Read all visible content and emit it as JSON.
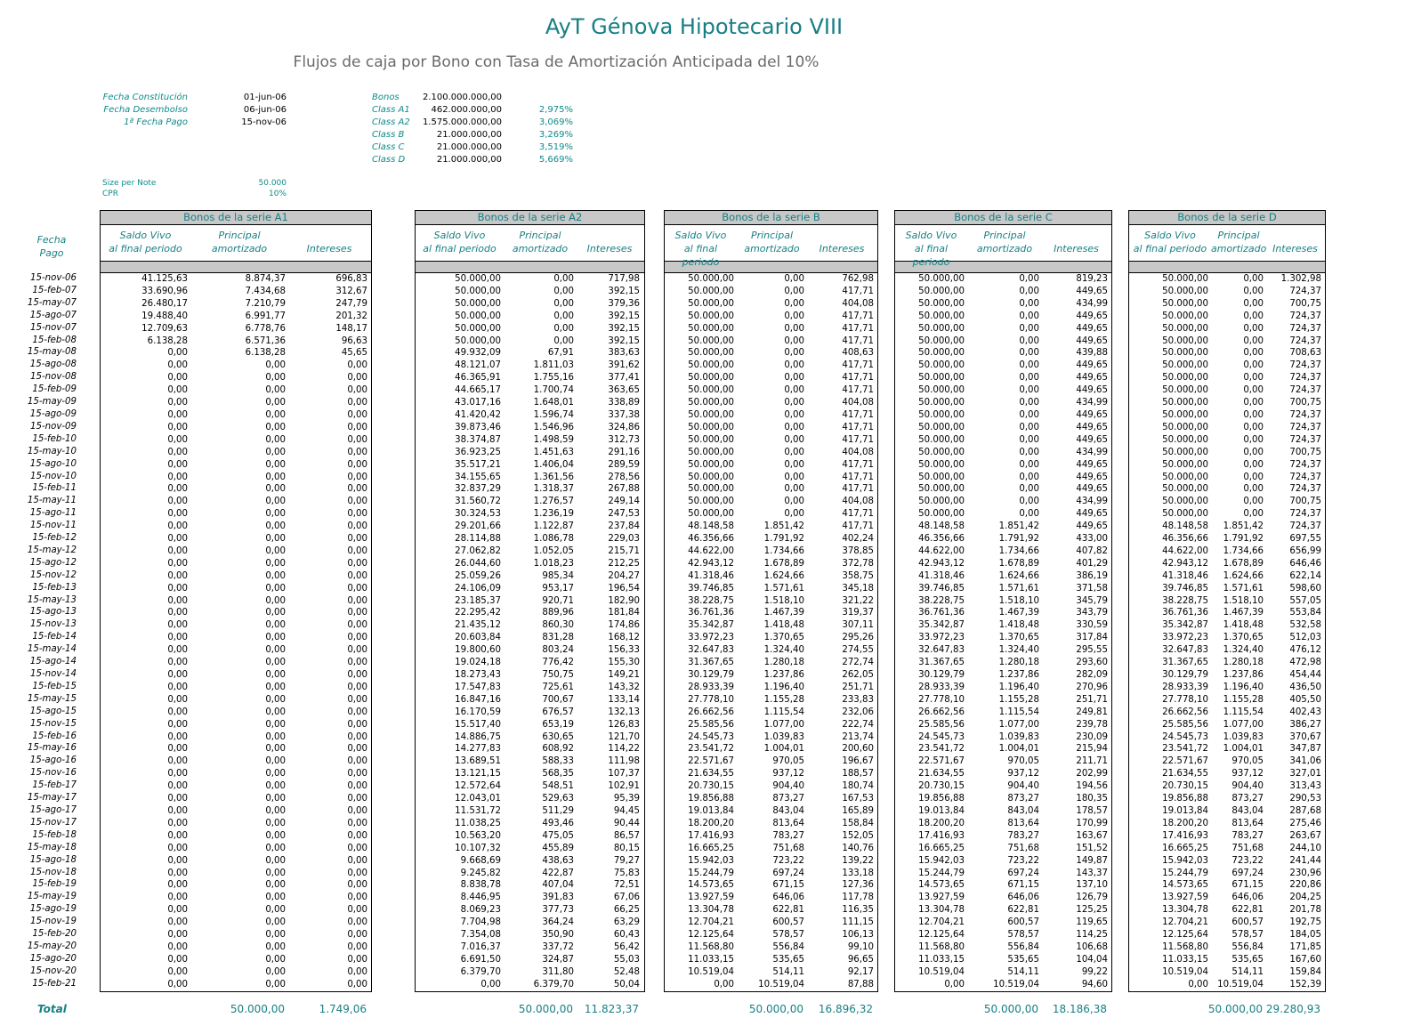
{
  "title": "AyT Génova Hipotecario VIII",
  "subtitle": "Flujos de caja por Bono con Tasa de Amortización Anticipada del 10%",
  "info": {
    "fecha_constitucion_label": "Fecha Constitución",
    "fecha_constitucion": "01-jun-06",
    "fecha_desembolso_label": "Fecha Desembolso",
    "fecha_desembolso": "06-jun-06",
    "primera_fecha_pago_label": "1ª Fecha Pago",
    "primera_fecha_pago": "15-nov-06",
    "size_per_note_label": "Size per Note",
    "size_per_note": "50.000",
    "cpr_label": "CPR",
    "cpr": "10%"
  },
  "bonds": [
    {
      "name": "Bonos",
      "amount": "2.100.000.000,00",
      "rate": ""
    },
    {
      "name": "Class A1",
      "amount": "462.000.000,00",
      "rate": "2,975%"
    },
    {
      "name": "Class A2",
      "amount": "1.575.000.000,00",
      "rate": "3,069%"
    },
    {
      "name": "Class B",
      "amount": "21.000.000,00",
      "rate": "3,269%"
    },
    {
      "name": "Class C",
      "amount": "21.000.000,00",
      "rate": "3,519%"
    },
    {
      "name": "Class D",
      "amount": "21.000.000,00",
      "rate": "5,669%"
    }
  ],
  "fecha_header": [
    "Fecha",
    "Pago"
  ],
  "col_headers": {
    "saldo": [
      "Saldo Vivo",
      "al final periodo"
    ],
    "principal": [
      "Principal",
      "amortizado"
    ],
    "intereses": "Intereses"
  },
  "dates": [
    "15-nov-06",
    "15-feb-07",
    "15-may-07",
    "15-ago-07",
    "15-nov-07",
    "15-feb-08",
    "15-may-08",
    "15-ago-08",
    "15-nov-08",
    "15-feb-09",
    "15-may-09",
    "15-ago-09",
    "15-nov-09",
    "15-feb-10",
    "15-may-10",
    "15-ago-10",
    "15-nov-10",
    "15-feb-11",
    "15-may-11",
    "15-ago-11",
    "15-nov-11",
    "15-feb-12",
    "15-may-12",
    "15-ago-12",
    "15-nov-12",
    "15-feb-13",
    "15-may-13",
    "15-ago-13",
    "15-nov-13",
    "15-feb-14",
    "15-may-14",
    "15-ago-14",
    "15-nov-14",
    "15-feb-15",
    "15-may-15",
    "15-ago-15",
    "15-nov-15",
    "15-feb-16",
    "15-may-16",
    "15-ago-16",
    "15-nov-16",
    "15-feb-17",
    "15-may-17",
    "15-ago-17",
    "15-nov-17",
    "15-feb-18",
    "15-may-18",
    "15-ago-18",
    "15-nov-18",
    "15-feb-19",
    "15-may-19",
    "15-ago-19",
    "15-nov-19",
    "15-feb-20",
    "15-may-20",
    "15-ago-20",
    "15-nov-20",
    "15-feb-21"
  ],
  "total_label": "Total",
  "series": [
    {
      "title": "Bonos de la serie A1",
      "saldo": [
        "41.125,63",
        "33.690,96",
        "26.480,17",
        "19.488,40",
        "12.709,63",
        "6.138,28",
        "0,00",
        "0,00",
        "0,00",
        "0,00",
        "0,00",
        "0,00",
        "0,00",
        "0,00",
        "0,00",
        "0,00",
        "0,00",
        "0,00",
        "0,00",
        "0,00",
        "0,00",
        "0,00",
        "0,00",
        "0,00",
        "0,00",
        "0,00",
        "0,00",
        "0,00",
        "0,00",
        "0,00",
        "0,00",
        "0,00",
        "0,00",
        "0,00",
        "0,00",
        "0,00",
        "0,00",
        "0,00",
        "0,00",
        "0,00",
        "0,00",
        "0,00",
        "0,00",
        "0,00",
        "0,00",
        "0,00",
        "0,00",
        "0,00",
        "0,00",
        "0,00",
        "0,00",
        "0,00",
        "0,00",
        "0,00",
        "0,00",
        "0,00",
        "0,00",
        "0,00"
      ],
      "principal": [
        "8.874,37",
        "7.434,68",
        "7.210,79",
        "6.991,77",
        "6.778,76",
        "6.571,36",
        "6.138,28",
        "0,00",
        "0,00",
        "0,00",
        "0,00",
        "0,00",
        "0,00",
        "0,00",
        "0,00",
        "0,00",
        "0,00",
        "0,00",
        "0,00",
        "0,00",
        "0,00",
        "0,00",
        "0,00",
        "0,00",
        "0,00",
        "0,00",
        "0,00",
        "0,00",
        "0,00",
        "0,00",
        "0,00",
        "0,00",
        "0,00",
        "0,00",
        "0,00",
        "0,00",
        "0,00",
        "0,00",
        "0,00",
        "0,00",
        "0,00",
        "0,00",
        "0,00",
        "0,00",
        "0,00",
        "0,00",
        "0,00",
        "0,00",
        "0,00",
        "0,00",
        "0,00",
        "0,00",
        "0,00",
        "0,00",
        "0,00",
        "0,00",
        "0,00",
        "0,00"
      ],
      "intereses": [
        "696,83",
        "312,67",
        "247,79",
        "201,32",
        "148,17",
        "96,63",
        "45,65",
        "0,00",
        "0,00",
        "0,00",
        "0,00",
        "0,00",
        "0,00",
        "0,00",
        "0,00",
        "0,00",
        "0,00",
        "0,00",
        "0,00",
        "0,00",
        "0,00",
        "0,00",
        "0,00",
        "0,00",
        "0,00",
        "0,00",
        "0,00",
        "0,00",
        "0,00",
        "0,00",
        "0,00",
        "0,00",
        "0,00",
        "0,00",
        "0,00",
        "0,00",
        "0,00",
        "0,00",
        "0,00",
        "0,00",
        "0,00",
        "0,00",
        "0,00",
        "0,00",
        "0,00",
        "0,00",
        "0,00",
        "0,00",
        "0,00",
        "0,00",
        "0,00",
        "0,00",
        "0,00",
        "0,00",
        "0,00",
        "0,00",
        "0,00",
        "0,00"
      ],
      "total_principal": "50.000,00",
      "total_intereses": "1.749,06"
    },
    {
      "title": "Bonos de la serie A2",
      "saldo": [
        "50.000,00",
        "50.000,00",
        "50.000,00",
        "50.000,00",
        "50.000,00",
        "50.000,00",
        "49.932,09",
        "48.121,07",
        "46.365,91",
        "44.665,17",
        "43.017,16",
        "41.420,42",
        "39.873,46",
        "38.374,87",
        "36.923,25",
        "35.517,21",
        "34.155,65",
        "32.837,29",
        "31.560,72",
        "30.324,53",
        "29.201,66",
        "28.114,88",
        "27.062,82",
        "26.044,60",
        "25.059,26",
        "24.106,09",
        "23.185,37",
        "22.295,42",
        "21.435,12",
        "20.603,84",
        "19.800,60",
        "19.024,18",
        "18.273,43",
        "17.547,83",
        "16.847,16",
        "16.170,59",
        "15.517,40",
        "14.886,75",
        "14.277,83",
        "13.689,51",
        "13.121,15",
        "12.572,64",
        "12.043,01",
        "11.531,72",
        "11.038,25",
        "10.563,20",
        "10.107,32",
        "9.668,69",
        "9.245,82",
        "8.838,78",
        "8.446,95",
        "8.069,23",
        "7.704,98",
        "7.354,08",
        "7.016,37",
        "6.691,50",
        "6.379,70",
        "0,00"
      ],
      "principal": [
        "0,00",
        "0,00",
        "0,00",
        "0,00",
        "0,00",
        "0,00",
        "67,91",
        "1.811,03",
        "1.755,16",
        "1.700,74",
        "1.648,01",
        "1.596,74",
        "1.546,96",
        "1.498,59",
        "1.451,63",
        "1.406,04",
        "1.361,56",
        "1.318,37",
        "1.276,57",
        "1.236,19",
        "1.122,87",
        "1.086,78",
        "1.052,05",
        "1.018,23",
        "985,34",
        "953,17",
        "920,71",
        "889,96",
        "860,30",
        "831,28",
        "803,24",
        "776,42",
        "750,75",
        "725,61",
        "700,67",
        "676,57",
        "653,19",
        "630,65",
        "608,92",
        "588,33",
        "568,35",
        "548,51",
        "529,63",
        "511,29",
        "493,46",
        "475,05",
        "455,89",
        "438,63",
        "422,87",
        "407,04",
        "391,83",
        "377,73",
        "364,24",
        "350,90",
        "337,72",
        "324,87",
        "311,80",
        "6.379,70"
      ],
      "intereses": [
        "717,98",
        "392,15",
        "379,36",
        "392,15",
        "392,15",
        "392,15",
        "383,63",
        "391,62",
        "377,41",
        "363,65",
        "338,89",
        "337,38",
        "324,86",
        "312,73",
        "291,16",
        "289,59",
        "278,56",
        "267,88",
        "249,14",
        "247,53",
        "237,84",
        "229,03",
        "215,71",
        "212,25",
        "204,27",
        "196,54",
        "182,90",
        "181,84",
        "174,86",
        "168,12",
        "156,33",
        "155,30",
        "149,21",
        "143,32",
        "133,14",
        "132,13",
        "126,83",
        "121,70",
        "114,22",
        "111,98",
        "107,37",
        "102,91",
        "95,39",
        "94,45",
        "90,44",
        "86,57",
        "80,15",
        "79,27",
        "75,83",
        "72,51",
        "67,06",
        "66,25",
        "63,29",
        "60,43",
        "56,42",
        "55,03",
        "52,48",
        "50,04"
      ],
      "total_principal": "50.000,00",
      "total_intereses": "11.823,37"
    },
    {
      "title": "Bonos de la serie B",
      "saldo": [
        "50.000,00",
        "50.000,00",
        "50.000,00",
        "50.000,00",
        "50.000,00",
        "50.000,00",
        "50.000,00",
        "50.000,00",
        "50.000,00",
        "50.000,00",
        "50.000,00",
        "50.000,00",
        "50.000,00",
        "50.000,00",
        "50.000,00",
        "50.000,00",
        "50.000,00",
        "50.000,00",
        "50.000,00",
        "50.000,00",
        "48.148,58",
        "46.356,66",
        "44.622,00",
        "42.943,12",
        "41.318,46",
        "39.746,85",
        "38.228,75",
        "36.761,36",
        "35.342,87",
        "33.972,23",
        "32.647,83",
        "31.367,65",
        "30.129,79",
        "28.933,39",
        "27.778,10",
        "26.662,56",
        "25.585,56",
        "24.545,73",
        "23.541,72",
        "22.571,67",
        "21.634,55",
        "20.730,15",
        "19.856,88",
        "19.013,84",
        "18.200,20",
        "17.416,93",
        "16.665,25",
        "15.942,03",
        "15.244,79",
        "14.573,65",
        "13.927,59",
        "13.304,78",
        "12.704,21",
        "12.125,64",
        "11.568,80",
        "11.033,15",
        "10.519,04",
        "0,00"
      ],
      "principal": [
        "0,00",
        "0,00",
        "0,00",
        "0,00",
        "0,00",
        "0,00",
        "0,00",
        "0,00",
        "0,00",
        "0,00",
        "0,00",
        "0,00",
        "0,00",
        "0,00",
        "0,00",
        "0,00",
        "0,00",
        "0,00",
        "0,00",
        "0,00",
        "1.851,42",
        "1.791,92",
        "1.734,66",
        "1.678,89",
        "1.624,66",
        "1.571,61",
        "1.518,10",
        "1.467,39",
        "1.418,48",
        "1.370,65",
        "1.324,40",
        "1.280,18",
        "1.237,86",
        "1.196,40",
        "1.155,28",
        "1.115,54",
        "1.077,00",
        "1.039,83",
        "1.004,01",
        "970,05",
        "937,12",
        "904,40",
        "873,27",
        "843,04",
        "813,64",
        "783,27",
        "751,68",
        "723,22",
        "697,24",
        "671,15",
        "646,06",
        "622,81",
        "600,57",
        "578,57",
        "556,84",
        "535,65",
        "514,11",
        "10.519,04"
      ],
      "intereses": [
        "762,98",
        "417,71",
        "404,08",
        "417,71",
        "417,71",
        "417,71",
        "408,63",
        "417,71",
        "417,71",
        "417,71",
        "404,08",
        "417,71",
        "417,71",
        "417,71",
        "404,08",
        "417,71",
        "417,71",
        "417,71",
        "404,08",
        "417,71",
        "417,71",
        "402,24",
        "378,85",
        "372,78",
        "358,75",
        "345,18",
        "321,22",
        "319,37",
        "307,11",
        "295,26",
        "274,55",
        "272,74",
        "262,05",
        "251,71",
        "233,83",
        "232,06",
        "222,74",
        "213,74",
        "200,60",
        "196,67",
        "188,57",
        "180,74",
        "167,53",
        "165,89",
        "158,84",
        "152,05",
        "140,76",
        "139,22",
        "133,18",
        "127,36",
        "117,78",
        "116,35",
        "111,15",
        "106,13",
        "99,10",
        "96,65",
        "92,17",
        "87,88"
      ],
      "total_principal": "50.000,00",
      "total_intereses": "16.896,32"
    },
    {
      "title": "Bonos de la serie C",
      "saldo": [
        "50.000,00",
        "50.000,00",
        "50.000,00",
        "50.000,00",
        "50.000,00",
        "50.000,00",
        "50.000,00",
        "50.000,00",
        "50.000,00",
        "50.000,00",
        "50.000,00",
        "50.000,00",
        "50.000,00",
        "50.000,00",
        "50.000,00",
        "50.000,00",
        "50.000,00",
        "50.000,00",
        "50.000,00",
        "50.000,00",
        "48.148,58",
        "46.356,66",
        "44.622,00",
        "42.943,12",
        "41.318,46",
        "39.746,85",
        "38.228,75",
        "36.761,36",
        "35.342,87",
        "33.972,23",
        "32.647,83",
        "31.367,65",
        "30.129,79",
        "28.933,39",
        "27.778,10",
        "26.662,56",
        "25.585,56",
        "24.545,73",
        "23.541,72",
        "22.571,67",
        "21.634,55",
        "20.730,15",
        "19.856,88",
        "19.013,84",
        "18.200,20",
        "17.416,93",
        "16.665,25",
        "15.942,03",
        "15.244,79",
        "14.573,65",
        "13.927,59",
        "13.304,78",
        "12.704,21",
        "12.125,64",
        "11.568,80",
        "11.033,15",
        "10.519,04",
        "0,00"
      ],
      "principal": [
        "0,00",
        "0,00",
        "0,00",
        "0,00",
        "0,00",
        "0,00",
        "0,00",
        "0,00",
        "0,00",
        "0,00",
        "0,00",
        "0,00",
        "0,00",
        "0,00",
        "0,00",
        "0,00",
        "0,00",
        "0,00",
        "0,00",
        "0,00",
        "1.851,42",
        "1.791,92",
        "1.734,66",
        "1.678,89",
        "1.624,66",
        "1.571,61",
        "1.518,10",
        "1.467,39",
        "1.418,48",
        "1.370,65",
        "1.324,40",
        "1.280,18",
        "1.237,86",
        "1.196,40",
        "1.155,28",
        "1.115,54",
        "1.077,00",
        "1.039,83",
        "1.004,01",
        "970,05",
        "937,12",
        "904,40",
        "873,27",
        "843,04",
        "813,64",
        "783,27",
        "751,68",
        "723,22",
        "697,24",
        "671,15",
        "646,06",
        "622,81",
        "600,57",
        "578,57",
        "556,84",
        "535,65",
        "514,11",
        "10.519,04"
      ],
      "intereses": [
        "819,23",
        "449,65",
        "434,99",
        "449,65",
        "449,65",
        "449,65",
        "439,88",
        "449,65",
        "449,65",
        "449,65",
        "434,99",
        "449,65",
        "449,65",
        "449,65",
        "434,99",
        "449,65",
        "449,65",
        "449,65",
        "434,99",
        "449,65",
        "449,65",
        "433,00",
        "407,82",
        "401,29",
        "386,19",
        "371,58",
        "345,79",
        "343,79",
        "330,59",
        "317,84",
        "295,55",
        "293,60",
        "282,09",
        "270,96",
        "251,71",
        "249,81",
        "239,78",
        "230,09",
        "215,94",
        "211,71",
        "202,99",
        "194,56",
        "180,35",
        "178,57",
        "170,99",
        "163,67",
        "151,52",
        "149,87",
        "143,37",
        "137,10",
        "126,79",
        "125,25",
        "119,65",
        "114,25",
        "106,68",
        "104,04",
        "99,22",
        "94,60"
      ],
      "total_principal": "50.000,00",
      "total_intereses": "18.186,38"
    },
    {
      "title": "Bonos de la serie D",
      "saldo": [
        "50.000,00",
        "50.000,00",
        "50.000,00",
        "50.000,00",
        "50.000,00",
        "50.000,00",
        "50.000,00",
        "50.000,00",
        "50.000,00",
        "50.000,00",
        "50.000,00",
        "50.000,00",
        "50.000,00",
        "50.000,00",
        "50.000,00",
        "50.000,00",
        "50.000,00",
        "50.000,00",
        "50.000,00",
        "50.000,00",
        "48.148,58",
        "46.356,66",
        "44.622,00",
        "42.943,12",
        "41.318,46",
        "39.746,85",
        "38.228,75",
        "36.761,36",
        "35.342,87",
        "33.972,23",
        "32.647,83",
        "31.367,65",
        "30.129,79",
        "28.933,39",
        "27.778,10",
        "26.662,56",
        "25.585,56",
        "24.545,73",
        "23.541,72",
        "22.571,67",
        "21.634,55",
        "20.730,15",
        "19.856,88",
        "19.013,84",
        "18.200,20",
        "17.416,93",
        "16.665,25",
        "15.942,03",
        "15.244,79",
        "14.573,65",
        "13.927,59",
        "13.304,78",
        "12.704,21",
        "12.125,64",
        "11.568,80",
        "11.033,15",
        "10.519,04",
        "0,00"
      ],
      "principal": [
        "0,00",
        "0,00",
        "0,00",
        "0,00",
        "0,00",
        "0,00",
        "0,00",
        "0,00",
        "0,00",
        "0,00",
        "0,00",
        "0,00",
        "0,00",
        "0,00",
        "0,00",
        "0,00",
        "0,00",
        "0,00",
        "0,00",
        "0,00",
        "1.851,42",
        "1.791,92",
        "1.734,66",
        "1.678,89",
        "1.624,66",
        "1.571,61",
        "1.518,10",
        "1.467,39",
        "1.418,48",
        "1.370,65",
        "1.324,40",
        "1.280,18",
        "1.237,86",
        "1.196,40",
        "1.155,28",
        "1.115,54",
        "1.077,00",
        "1.039,83",
        "1.004,01",
        "970,05",
        "937,12",
        "904,40",
        "873,27",
        "843,04",
        "813,64",
        "783,27",
        "751,68",
        "723,22",
        "697,24",
        "671,15",
        "646,06",
        "622,81",
        "600,57",
        "578,57",
        "556,84",
        "535,65",
        "514,11",
        "10.519,04"
      ],
      "intereses": [
        "1.302,98",
        "724,37",
        "700,75",
        "724,37",
        "724,37",
        "724,37",
        "708,63",
        "724,37",
        "724,37",
        "724,37",
        "700,75",
        "724,37",
        "724,37",
        "724,37",
        "700,75",
        "724,37",
        "724,37",
        "724,37",
        "700,75",
        "724,37",
        "724,37",
        "697,55",
        "656,99",
        "646,46",
        "622,14",
        "598,60",
        "557,05",
        "553,84",
        "532,58",
        "512,03",
        "476,12",
        "472,98",
        "454,44",
        "436,50",
        "405,50",
        "402,43",
        "386,27",
        "370,67",
        "347,87",
        "341,06",
        "327,01",
        "313,43",
        "290,53",
        "287,68",
        "275,46",
        "263,67",
        "244,10",
        "241,44",
        "230,96",
        "220,86",
        "204,25",
        "201,78",
        "192,75",
        "184,05",
        "171,85",
        "167,60",
        "159,84",
        "152,39"
      ],
      "total_principal": "50.000,00",
      "total_intereses": "29.280,93"
    }
  ]
}
